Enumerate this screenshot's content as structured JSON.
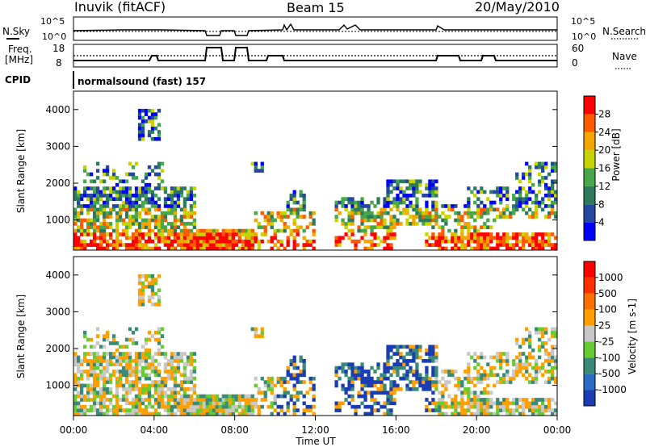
{
  "header": {
    "station": "Inuvik (fitACF)",
    "beam": "Beam 15",
    "date": "20/May/2010"
  },
  "top_panels": {
    "nsky_label": "N.Sky",
    "nsearch_label": "N.Search",
    "freq_label_1": "Freq.",
    "freq_label_2": "[MHz]",
    "nave_label": "Nave",
    "cpid_label": "CPID",
    "cpid_value": "normalsound (fast) 157",
    "noise_ticks": [
      "10^5",
      "10^0"
    ],
    "freq_ticks": [
      "18",
      "8"
    ],
    "nave_ticks": [
      "60",
      "0"
    ]
  },
  "chart_data": [
    {
      "type": "heatmap",
      "name": "power",
      "ylabel": "Slant Range [km]",
      "yticks": [
        1000,
        2000,
        3000,
        4000
      ],
      "ylim": [
        180,
        4500
      ],
      "colorbar_label": "Power [dB]",
      "colorbar_ticks": [
        "28",
        "24",
        "20",
        "16",
        "12",
        "8",
        "4"
      ],
      "colors": [
        "#0000ff",
        "#24489f",
        "#2e7a5e",
        "#46a84a",
        "#c8d400",
        "#f5a500",
        "#ff5a00",
        "#ff0000"
      ]
    },
    {
      "type": "heatmap",
      "name": "velocity",
      "ylabel": "Slant Range [km]",
      "yticks": [
        1000,
        2000,
        3000,
        4000
      ],
      "ylim": [
        180,
        4500
      ],
      "colorbar_label": "Velocity [m s-1]",
      "colorbar_ticks": [
        "1000",
        "500",
        "100",
        "25",
        "-25",
        "-100",
        "-500",
        "-1000"
      ],
      "colors": [
        "#1a3cb4",
        "#2a6cc4",
        "#3a8a7a",
        "#66cc33",
        "#c8c8c8",
        "#ffa000",
        "#ff7000",
        "#ff3000",
        "#ff0000"
      ]
    }
  ],
  "x_axis": {
    "ticks": [
      "00:00",
      "04:00",
      "08:00",
      "12:00",
      "16:00",
      "20:00",
      "00:00"
    ],
    "label": "Time UT"
  }
}
